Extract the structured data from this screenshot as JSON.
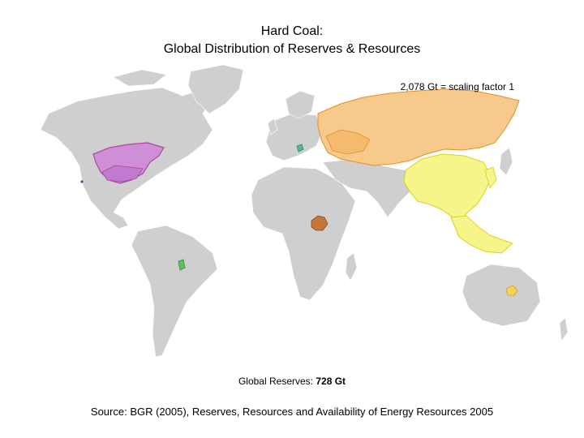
{
  "title": {
    "line1": "Hard Coal:",
    "line2": "Global Distribution of Reserves & Resources"
  },
  "scale_note": "2,078 Gt = scaling factor 1",
  "reserves": {
    "label": "Global Reserves:",
    "value": "728 Gt"
  },
  "source": "Source: BGR (2005), Reserves, Resources and Availability of Energy Resources 2005",
  "colors": {
    "land": "#cfcfcf",
    "north_america": "#cf8fd6",
    "north_america_border": "#b0479f",
    "cis_russia": "#f7c98a",
    "cis_border": "#e0902a",
    "asia_pacific": "#f6f58a",
    "asia_border": "#d9d21a",
    "africa": "#c4773c",
    "europe": "#52b98f",
    "south_america": "#60c060",
    "australia": "#f4d35a"
  },
  "regions": [
    "north-america",
    "cis-russia",
    "asia-pacific",
    "europe",
    "africa",
    "south-america",
    "australia"
  ]
}
